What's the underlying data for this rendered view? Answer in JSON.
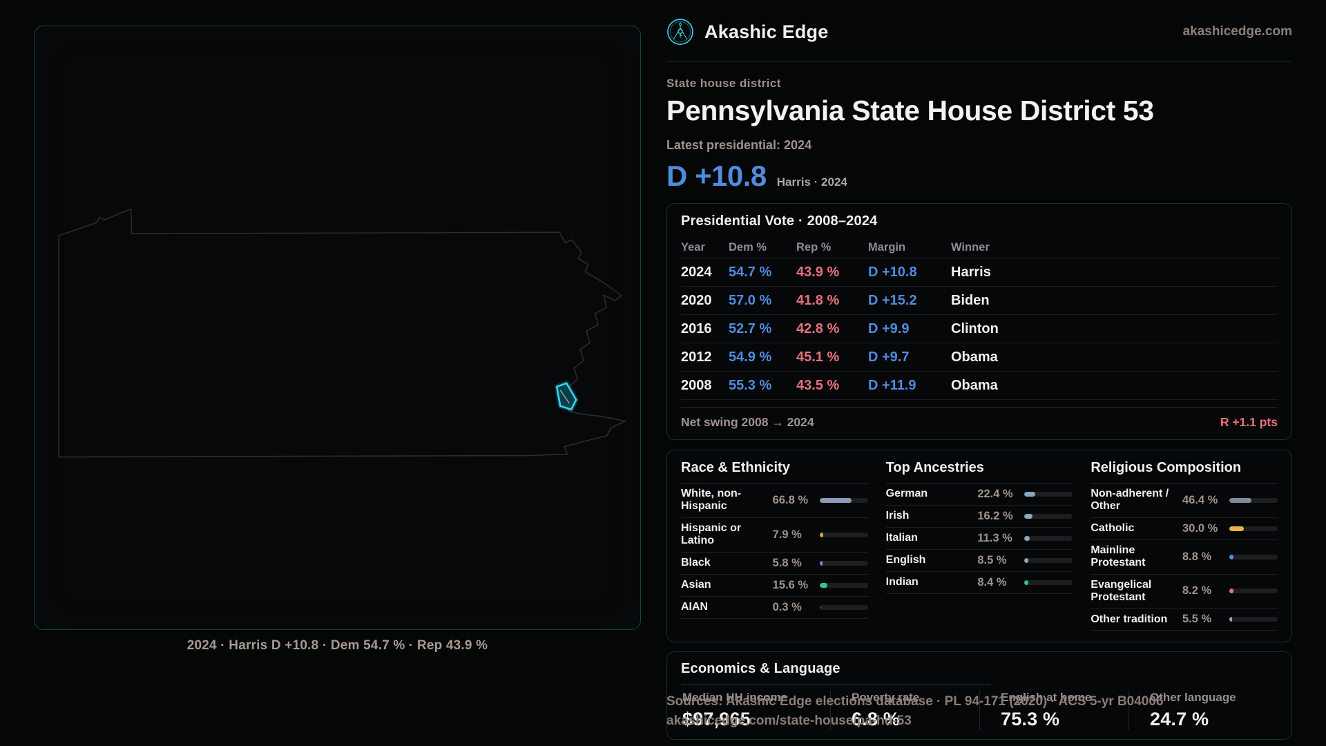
{
  "brand": {
    "name": "Akashic Edge",
    "domain": "akashicedge.com"
  },
  "colors": {
    "accent_teal": "#38c9dc",
    "dem_blue": "#4f8ce0",
    "rep_red": "#e5737c",
    "district_highlight": "#2fd6f0"
  },
  "header": {
    "eyebrow": "State house district",
    "title": "Pennsylvania State House District 53",
    "latest_label": "Latest presidential: 2024",
    "margin_value": "D +10.8",
    "margin_context": "Harris · 2024"
  },
  "map": {
    "caption": "2024 · Harris D +10.8 · Dem 54.7 % · Rep 43.9 %"
  },
  "presidential_table": {
    "title": "Presidential Vote · 2008–2024",
    "columns": [
      "Year",
      "Dem %",
      "Rep %",
      "Margin",
      "Winner"
    ],
    "rows": [
      {
        "year": "2024",
        "dem": "54.7 %",
        "rep": "43.9 %",
        "margin": "D +10.8",
        "winner": "Harris"
      },
      {
        "year": "2020",
        "dem": "57.0 %",
        "rep": "41.8 %",
        "margin": "D +15.2",
        "winner": "Biden"
      },
      {
        "year": "2016",
        "dem": "52.7 %",
        "rep": "42.8 %",
        "margin": "D +9.9",
        "winner": "Clinton"
      },
      {
        "year": "2012",
        "dem": "54.9 %",
        "rep": "45.1 %",
        "margin": "D +9.7",
        "winner": "Obama"
      },
      {
        "year": "2008",
        "dem": "55.3 %",
        "rep": "43.5 %",
        "margin": "D +11.9",
        "winner": "Obama"
      }
    ],
    "footer_label": "Net swing 2008 → 2024",
    "footer_value": "R +1.1 pts"
  },
  "race_ethnicity": {
    "title": "Race & Ethnicity",
    "rows": [
      {
        "label": "White, non-Hispanic",
        "value": "66.8 %",
        "pct": 66.8,
        "color": "#8c9cb8"
      },
      {
        "label": "Hispanic or Latino",
        "value": "7.9 %",
        "pct": 7.9,
        "color": "#e2a33c"
      },
      {
        "label": "Black",
        "value": "5.8 %",
        "pct": 5.8,
        "color": "#8d7cea"
      },
      {
        "label": "Asian",
        "value": "15.6 %",
        "pct": 15.6,
        "color": "#34c39c"
      },
      {
        "label": "AIAN",
        "value": "0.3 %",
        "pct": 0.3,
        "color": "#cf6a35"
      }
    ]
  },
  "ancestries": {
    "title": "Top Ancestries",
    "rows": [
      {
        "label": "German",
        "value": "22.4 %",
        "pct": 22.4,
        "color": "#8ba7bd"
      },
      {
        "label": "Irish",
        "value": "16.2 %",
        "pct": 16.2,
        "color": "#8ba7bd"
      },
      {
        "label": "Italian",
        "value": "11.3 %",
        "pct": 11.3,
        "color": "#8ba7bd"
      },
      {
        "label": "English",
        "value": "8.5 %",
        "pct": 8.5,
        "color": "#8ba7bd"
      },
      {
        "label": "Indian",
        "value": "8.4 %",
        "pct": 8.4,
        "color": "#37c28e"
      }
    ]
  },
  "religion": {
    "title": "Religious Composition",
    "rows": [
      {
        "label": "Non-adherent / Other",
        "value": "46.4 %",
        "pct": 46.4,
        "color": "#7e8a9d"
      },
      {
        "label": "Catholic",
        "value": "30.0 %",
        "pct": 30.0,
        "color": "#e3b63e"
      },
      {
        "label": "Mainline Protestant",
        "value": "8.8 %",
        "pct": 8.8,
        "color": "#4f8fe6"
      },
      {
        "label": "Evangelical Protestant",
        "value": "8.2 %",
        "pct": 8.2,
        "color": "#e5737c"
      },
      {
        "label": "Other tradition",
        "value": "5.5 %",
        "pct": 5.5,
        "color": "#9aa0a8"
      }
    ]
  },
  "economics": {
    "title": "Economics & Language",
    "stats": [
      {
        "label": "Median HH income",
        "value": "$97,965"
      },
      {
        "label": "Poverty rate",
        "value": "6.8 %"
      },
      {
        "label": "English at home",
        "value": "75.3 %"
      },
      {
        "label": "Other language",
        "value": "24.7 %"
      }
    ]
  },
  "source": {
    "line1": "Sources: Akashic Edge elections database · PL 94-171 (2020) · ACS 5-yr B04006",
    "line2": "akashicedge.com/state-house/pa-hd-53"
  }
}
